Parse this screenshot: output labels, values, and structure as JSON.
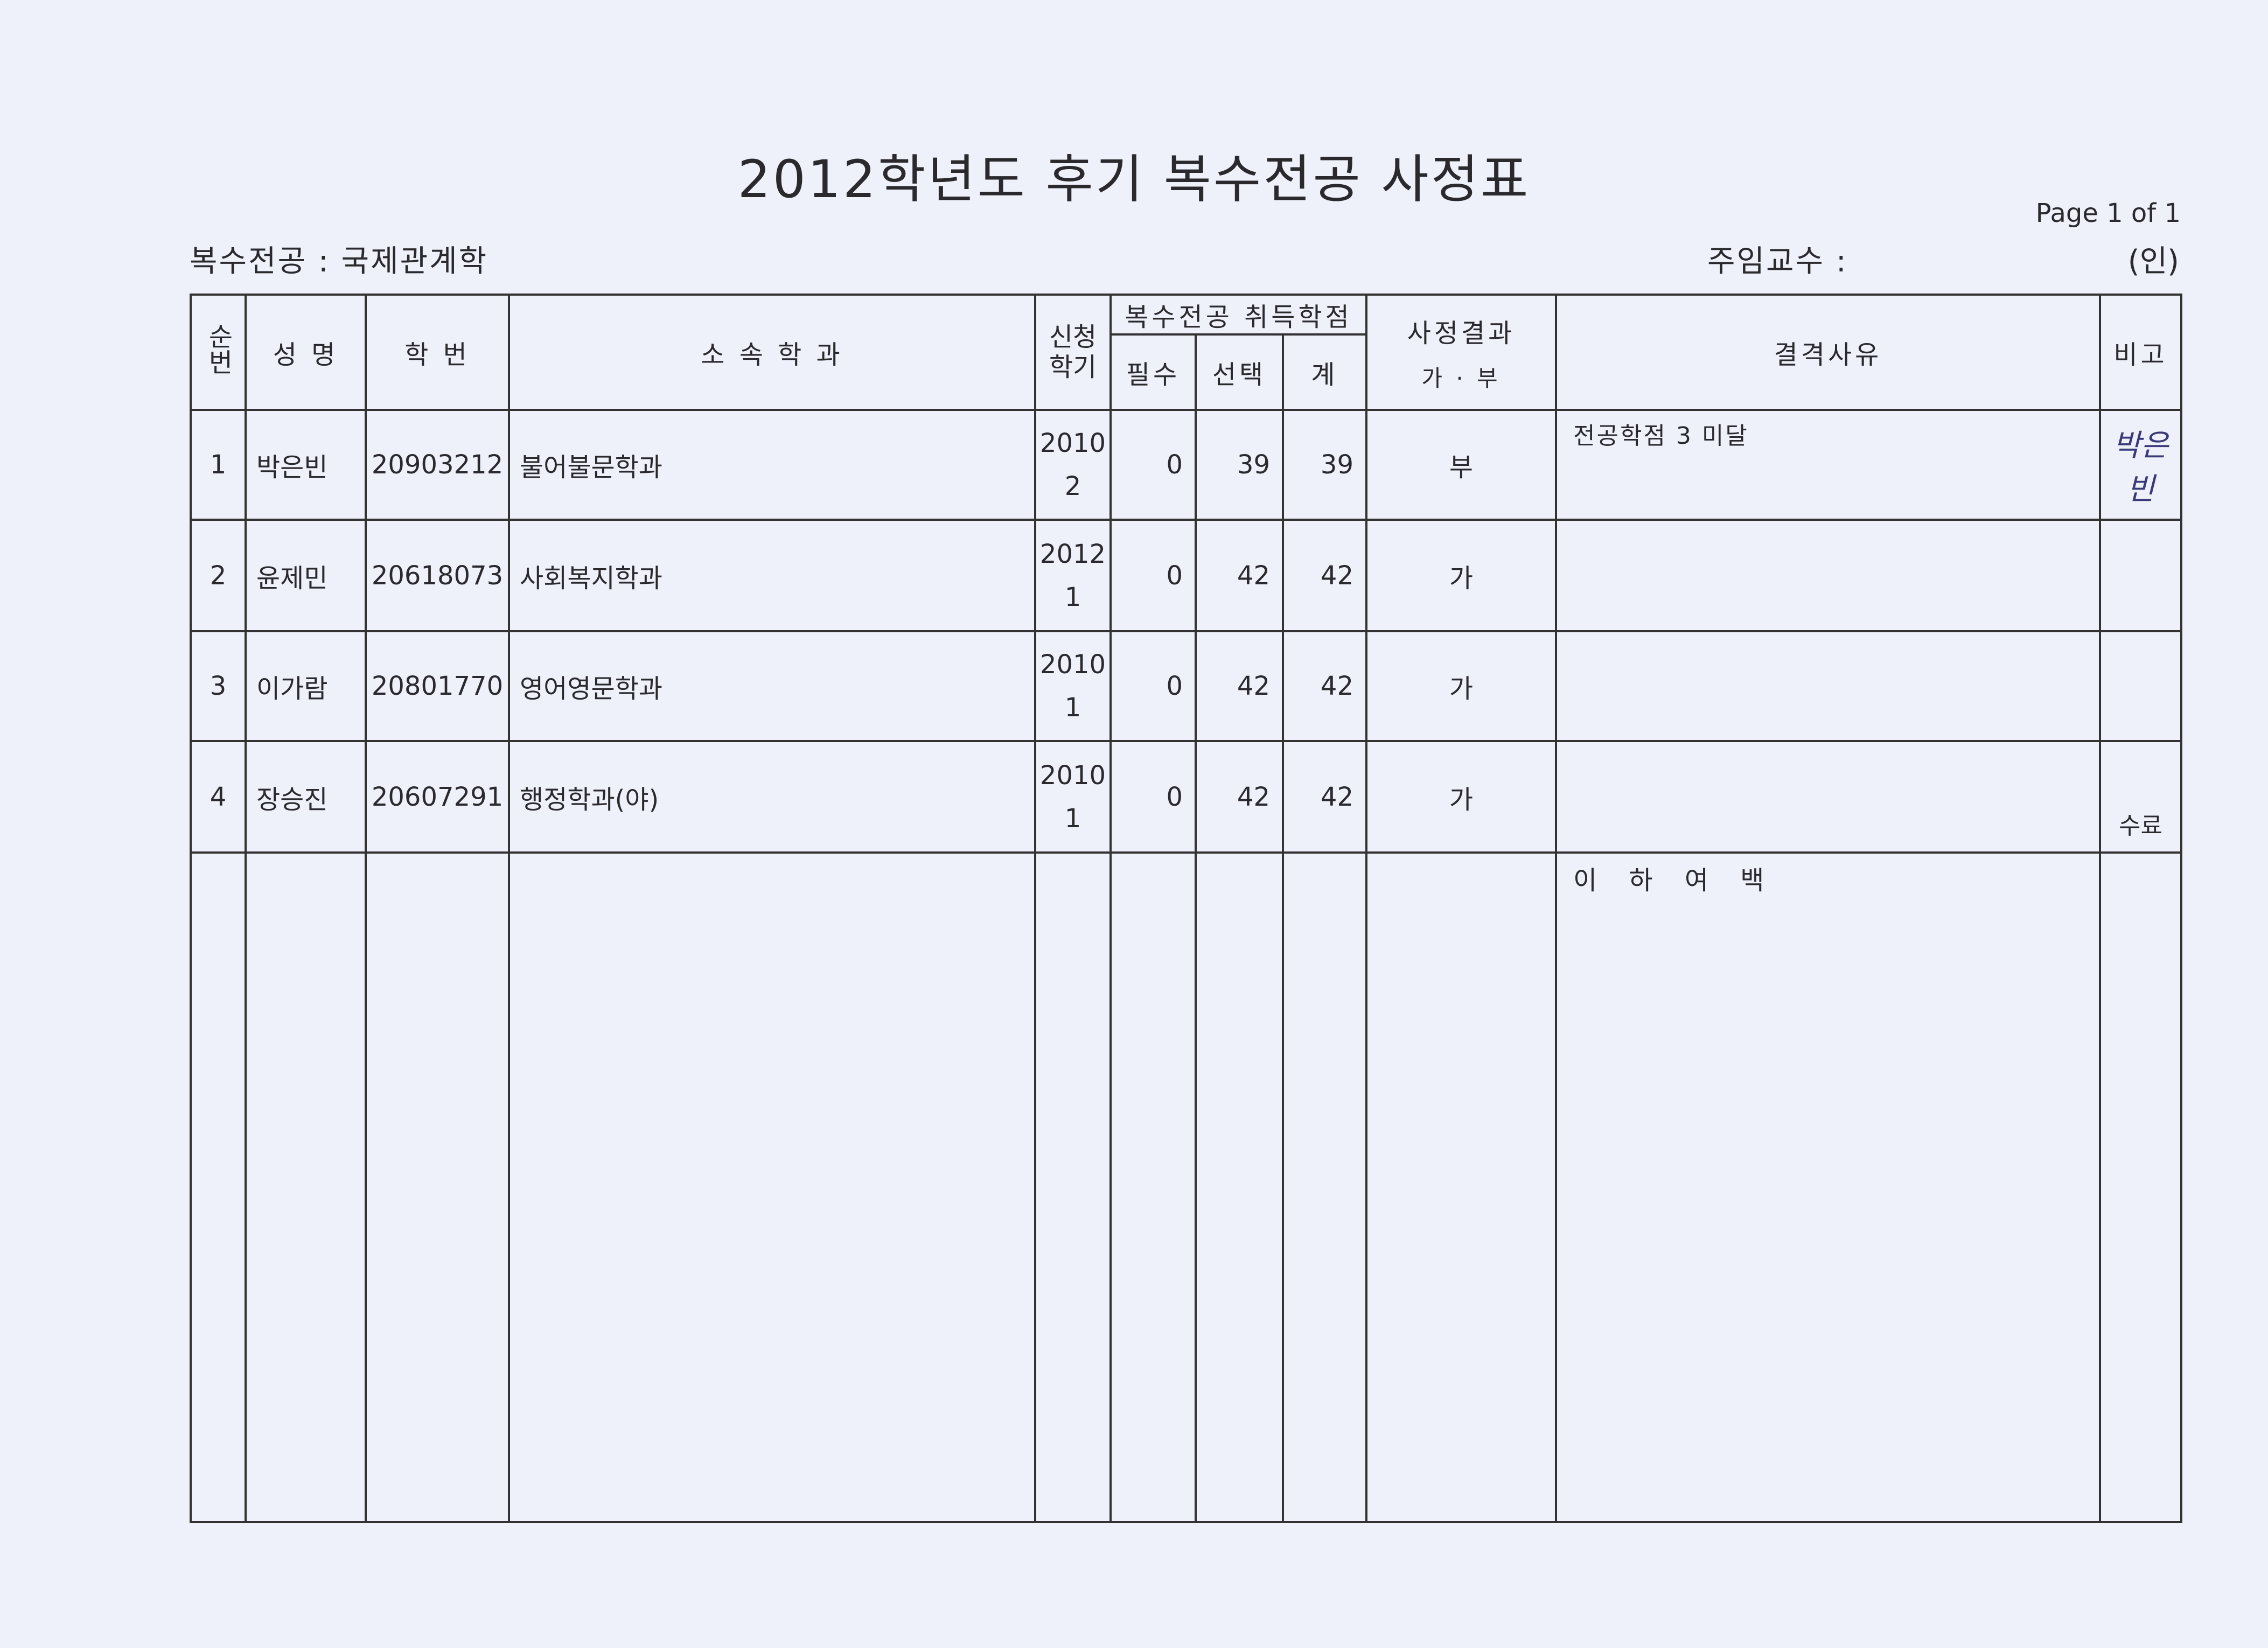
{
  "title": "2012학년도 후기  복수전공 사정표",
  "page_label": "Page 1 of 1",
  "major_label": "복수전공 : 국제관계학",
  "professor_label": "주임교수 :",
  "seal_label": "(인)",
  "headers": {
    "no": "순번",
    "name": "성 명",
    "student_id": "학 번",
    "department": "소 속 학 과",
    "semester": "신청학기",
    "credits_group": "복수전공 취득학점",
    "required": "필수",
    "elective": "선택",
    "total": "계",
    "result": "사정결과",
    "result_sub": "가 · 부",
    "reason": "결격사유",
    "remarks": "비고"
  },
  "rows": [
    {
      "no": "1",
      "name": "박은빈",
      "student_id": "20903212",
      "department": "불어불문학과",
      "year": "2010",
      "term": "2",
      "required": "0",
      "elective": "39",
      "total": "39",
      "result": "부",
      "reason": "전공학점 3 미달",
      "remarks": "박은빈"
    },
    {
      "no": "2",
      "name": "윤제민",
      "student_id": "20618073",
      "department": "사회복지학과",
      "year": "2012",
      "term": "1",
      "required": "0",
      "elective": "42",
      "total": "42",
      "result": "가",
      "reason": "",
      "remarks": ""
    },
    {
      "no": "3",
      "name": "이가람",
      "student_id": "20801770",
      "department": "영어영문학과",
      "year": "2010",
      "term": "1",
      "required": "0",
      "elective": "42",
      "total": "42",
      "result": "가",
      "reason": "",
      "remarks": ""
    },
    {
      "no": "4",
      "name": "장승진",
      "student_id": "20607291",
      "department": "행정학과(야)",
      "year": "2010",
      "term": "1",
      "required": "0",
      "elective": "42",
      "total": "42",
      "result": "가",
      "reason": "",
      "remarks": "수료"
    }
  ],
  "end_marker": "이 하 여 백"
}
